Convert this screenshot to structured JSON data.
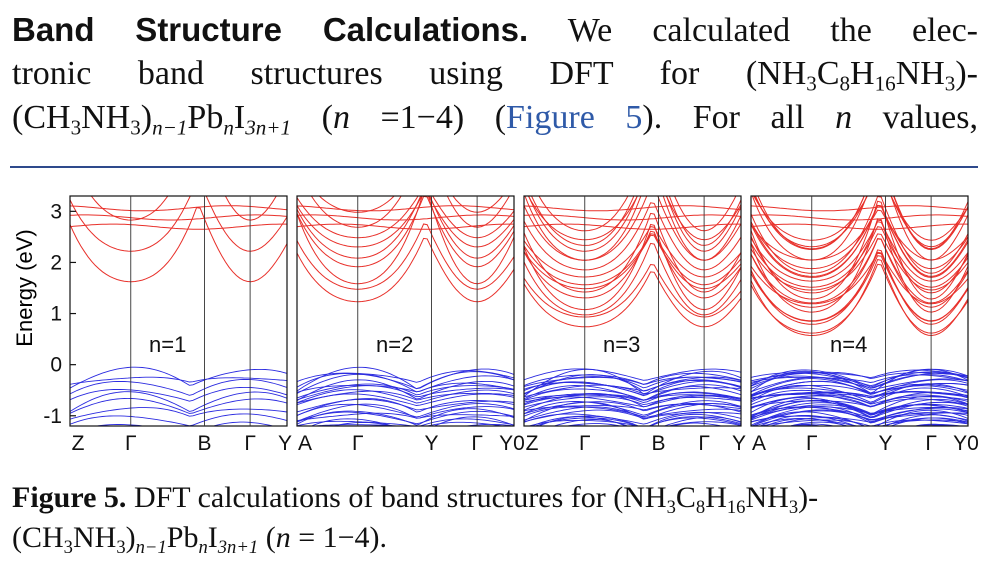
{
  "paragraph": {
    "heading": "Band Structure Calculations.",
    "line1_rest": " We calculated the elec-",
    "line2": "tronic band structures using DFT for (NH",
    "line2_sub1": "3",
    "line2_b": "C",
    "line2_sub2": "8",
    "line2_c": "H",
    "line2_sub3": "16",
    "line2_d": "NH",
    "line2_sub4": "3",
    "line2_e": ")-",
    "line3_a": "(CH",
    "line3_sub1": "3",
    "line3_b": "NH",
    "line3_sub2": "3",
    "line3_c": ")",
    "line3_sub3": "n−1",
    "line3_d": "Pb",
    "line3_sub4": "n",
    "line3_e": "I",
    "line3_sub5": "3n+1",
    "line3_f": " (",
    "line3_n": "n",
    "line3_g": " =1−4) (",
    "line3_link": "Figure 5",
    "line3_h": "). For all ",
    "line3_n2": "n",
    "line3_i": " values,"
  },
  "figure": {
    "ylabel": "Energy (eV)",
    "yticks": [
      "3",
      "2",
      "1",
      "0",
      "-1"
    ],
    "panels": [
      {
        "label": "n=1",
        "kpoints": [
          "Z",
          "Γ",
          "B",
          "Γ",
          "Y"
        ]
      },
      {
        "label": "n=2",
        "kpoints": [
          "A",
          "Γ",
          "Y",
          "Γ",
          "Y0"
        ]
      },
      {
        "label": "n=3",
        "kpoints": [
          "Z",
          "Γ",
          "B",
          "Γ",
          "Y"
        ]
      },
      {
        "label": "n=4",
        "kpoints": [
          "A",
          "Γ",
          "Y",
          "Γ",
          "Y0"
        ]
      }
    ],
    "colors": {
      "conduction": "#e8302a",
      "valence": "#2c2ce0"
    }
  },
  "caption": {
    "label": "Figure 5.",
    "text_a": " DFT calculations of band structures for (NH",
    "s1": "3",
    "b": "C",
    "s2": "8",
    "c": "H",
    "s3": "16",
    "d": "NH",
    "s4": "3",
    "e": ")-",
    "line2_a": "(CH",
    "l2s1": "3",
    "line2_b": "NH",
    "l2s2": "3",
    "line2_c": ")",
    "l2s3": "n−1",
    "line2_d": "Pb",
    "l2s4": "n",
    "line2_e": "I",
    "l2s5": "3n+1",
    "line2_f": " (",
    "line2_n": "n",
    "line2_g": " = 1−4)."
  }
}
